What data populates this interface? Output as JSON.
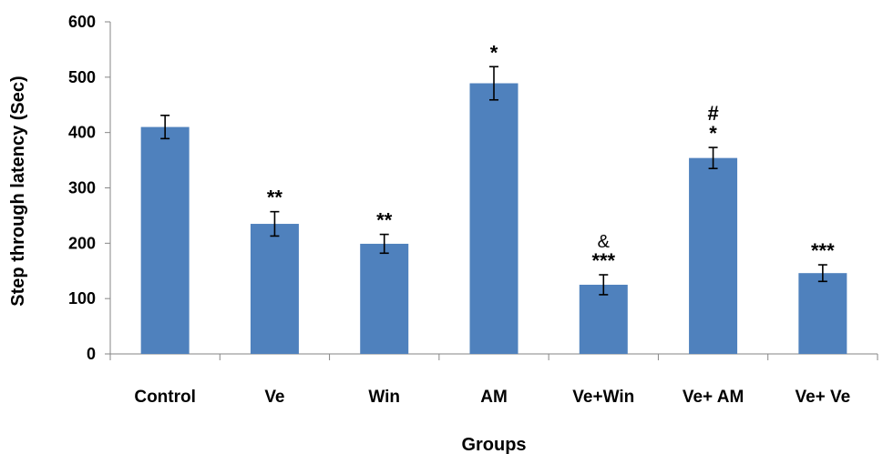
{
  "chart_data": {
    "type": "bar",
    "title": "",
    "xlabel": "Groups",
    "ylabel": "Step through latency (Sec)",
    "ylim": [
      0,
      600
    ],
    "yticks": [
      0,
      100,
      200,
      300,
      400,
      500,
      600
    ],
    "ytick_labels": [
      "0",
      "100",
      "200",
      "300",
      "400",
      "500",
      "600"
    ],
    "grid": false,
    "legend": "none",
    "categories": [
      "Control",
      "Ve",
      "Win",
      "AM",
      "Ve+Win",
      "Ve+ AM",
      "Ve+ Ve"
    ],
    "values": [
      410,
      235,
      199,
      489,
      125,
      354,
      146
    ],
    "error": [
      21,
      22,
      17,
      30,
      18,
      19,
      15
    ],
    "annotations": [
      [],
      [
        "**"
      ],
      [
        "**"
      ],
      [
        "*"
      ],
      [
        "&",
        "***"
      ],
      [
        "#",
        "*"
      ],
      [
        "***"
      ]
    ],
    "bar_color": "#4F81BD"
  }
}
